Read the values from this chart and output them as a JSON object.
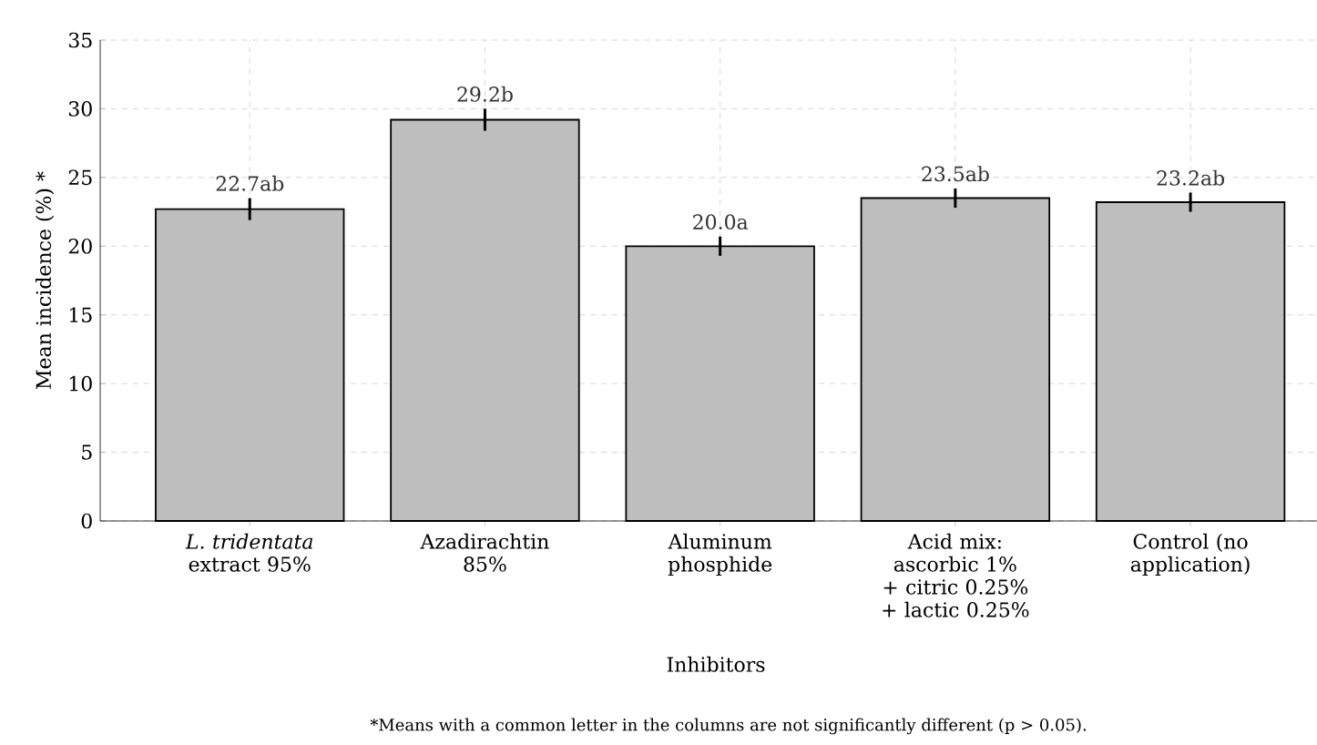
{
  "chart_data": {
    "type": "bar",
    "categories": [
      "*L. tridentata* extract 95%",
      "Azadirachtin 85%",
      "Aluminum phosphide",
      "Acid mix: ascorbic 1% + citric 0.25% + lactic 0.25%",
      "Control (no application)"
    ],
    "values": [
      22.7,
      29.2,
      20.0,
      23.5,
      23.2
    ],
    "errors": [
      0.8,
      0.8,
      0.7,
      0.7,
      0.7
    ],
    "value_labels": [
      "22.7ab",
      "29.2b",
      "20.0a",
      "23.5ab",
      "23.2ab"
    ],
    "color": "#bebebe",
    "xlabel": "Inhibitors",
    "ylabel": "Mean incidence (%) *",
    "ylim": [
      0,
      35
    ],
    "yticks": [
      0,
      5,
      10,
      15,
      20,
      25,
      30,
      35
    ],
    "grid": true,
    "annotations": [
      "*Means with a common letter in the columns are not significantly different (p > 0.05)."
    ]
  }
}
